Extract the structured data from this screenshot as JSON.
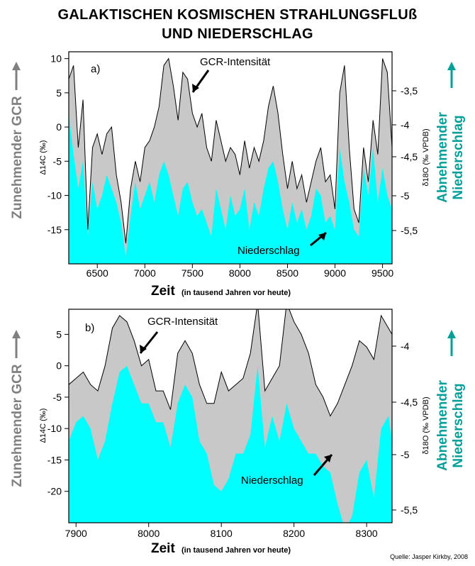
{
  "title_line1": "GALAKTISCHEN KOSMISCHEN STRAHLUNGSFLUß",
  "title_line2": "UND NIEDERSCHLAG",
  "source": "Quelle: Jasper Kirkby, 2008",
  "colors": {
    "gcr_fill": "#c8c8c8",
    "precip_fill": "#00ffff",
    "green_label": "#00a098",
    "gray_label": "#808080",
    "line": "#000000"
  },
  "chart_data": [
    {
      "type": "area",
      "panel_label": "a)",
      "xlabel": "Zeit",
      "xlabel_note": "(in tausend Jahren vor heute)",
      "xlim": [
        6200,
        9600
      ],
      "xticks": [
        6500,
        7000,
        7500,
        8000,
        8500,
        9000,
        9500
      ],
      "ylim_left": [
        -20,
        11
      ],
      "yticks_left": [
        -15,
        -10,
        -5,
        0,
        5,
        10
      ],
      "ylabel_left": "Δ14C (‰)",
      "side_label_left": "Zunehmender GCR",
      "yticks_right": [
        "-3,5",
        "-4",
        "-4,5",
        "-5",
        "-5,5"
      ],
      "ylabel_right": "δ18O (‰ VPDB)",
      "side_label_right_1": "Abnehmender",
      "side_label_right_2": "Niederschlag",
      "annotation_gcr": "GCR-Intensität",
      "annotation_precip": "Niederschlag",
      "series": [
        {
          "name": "GCR-Intensität",
          "x": [
            6200,
            6250,
            6300,
            6350,
            6400,
            6450,
            6500,
            6550,
            6600,
            6650,
            6700,
            6750,
            6800,
            6850,
            6900,
            6950,
            7000,
            7050,
            7100,
            7150,
            7200,
            7250,
            7300,
            7350,
            7400,
            7450,
            7500,
            7550,
            7600,
            7650,
            7700,
            7750,
            7800,
            7850,
            7900,
            7950,
            8000,
            8050,
            8100,
            8150,
            8200,
            8250,
            8300,
            8350,
            8400,
            8450,
            8500,
            8550,
            8600,
            8650,
            8700,
            8750,
            8800,
            8850,
            8900,
            8950,
            9000,
            9050,
            9100,
            9150,
            9200,
            9250,
            9300,
            9350,
            9400,
            9450,
            9500,
            9550,
            9600
          ],
          "values": [
            7,
            9,
            -3,
            4,
            -15,
            -3,
            -1,
            -4,
            -1,
            0,
            -7,
            -11,
            -17,
            -9,
            -5,
            -8,
            -3,
            -2,
            0,
            3,
            9,
            10,
            6,
            1,
            8,
            7,
            2,
            0,
            2,
            -3,
            -5,
            1,
            -2,
            -5,
            -3,
            -4,
            -7,
            -2,
            -6,
            -3,
            -5,
            -2,
            3,
            6,
            2,
            -4,
            -9,
            -5,
            -9,
            -7,
            -11,
            -8,
            -5,
            -3,
            -8,
            -7,
            -12,
            5,
            9,
            -3,
            -12,
            -14,
            -3,
            -8,
            1,
            -4,
            10,
            8,
            -3
          ]
        },
        {
          "name": "Niederschlag",
          "x": [
            6200,
            6250,
            6300,
            6350,
            6400,
            6450,
            6500,
            6550,
            6600,
            6650,
            6700,
            6750,
            6800,
            6850,
            6900,
            6950,
            7000,
            7050,
            7100,
            7150,
            7200,
            7250,
            7300,
            7350,
            7400,
            7450,
            7500,
            7550,
            7600,
            7650,
            7700,
            7750,
            7800,
            7850,
            7900,
            7950,
            8000,
            8050,
            8100,
            8150,
            8200,
            8250,
            8300,
            8350,
            8400,
            8450,
            8500,
            8550,
            8600,
            8650,
            8700,
            8750,
            8800,
            8850,
            8900,
            8950,
            9000,
            9050,
            9100,
            9150,
            9200,
            9250,
            9300,
            9350,
            9400,
            9450,
            9500,
            9550,
            9600
          ],
          "values": [
            2,
            -4,
            -9,
            -5,
            -16,
            -8,
            -12,
            -10,
            -7,
            -9,
            -11,
            -14,
            -19,
            -13,
            -8,
            -12,
            -10,
            -8,
            -11,
            -7,
            -5,
            -7,
            -10,
            -13,
            -9,
            -8,
            -11,
            -13,
            -12,
            -14,
            -16,
            -9,
            -12,
            -15,
            -10,
            -13,
            -12,
            -9,
            -15,
            -11,
            -13,
            -9,
            -6,
            -5,
            -8,
            -12,
            -15,
            -11,
            -14,
            -12,
            -15,
            -13,
            -9,
            -10,
            -14,
            -13,
            -15,
            -3,
            -8,
            -11,
            -15,
            -16,
            -6,
            -10,
            -3,
            -11,
            -6,
            -10,
            -12
          ]
        }
      ]
    },
    {
      "type": "area",
      "panel_label": "b)",
      "xlabel": "Zeit",
      "xlabel_note": "(in tausend Jahren vor heute)",
      "xlim": [
        7890,
        8335
      ],
      "xticks": [
        7900,
        8000,
        8100,
        8200,
        8300
      ],
      "ylim_left": [
        -25,
        9
      ],
      "yticks_left": [
        -20,
        -15,
        -10,
        -5,
        0,
        5
      ],
      "ylabel_left": "Δ14C (‰)",
      "side_label_left": "Zunehmender GCR",
      "yticks_right": [
        "-4",
        "-4,5",
        "-5",
        "-5,5"
      ],
      "ylabel_right": "δ18O (‰ VPDB)",
      "side_label_right_1": "Abnehmender",
      "side_label_right_2": "Niederschlag",
      "annotation_gcr": "GCR-Intensität",
      "annotation_precip": "Niederschlag",
      "series": [
        {
          "name": "GCR-Intensität",
          "x": [
            7890,
            7900,
            7910,
            7920,
            7930,
            7940,
            7950,
            7960,
            7970,
            7980,
            7990,
            8000,
            8010,
            8020,
            8030,
            8040,
            8050,
            8060,
            8070,
            8080,
            8090,
            8100,
            8110,
            8120,
            8130,
            8140,
            8150,
            8160,
            8170,
            8180,
            8190,
            8200,
            8210,
            8220,
            8230,
            8240,
            8250,
            8260,
            8270,
            8280,
            8290,
            8300,
            8310,
            8320,
            8330,
            8335
          ],
          "values": [
            -3,
            -2,
            -1,
            -3,
            -4,
            0,
            6,
            8,
            7,
            4,
            0,
            1,
            -4,
            -4,
            -7,
            2,
            4,
            2,
            -3,
            -6,
            -6,
            -1,
            -4,
            -3,
            -2,
            2,
            10,
            -4,
            -2,
            0,
            10,
            7,
            5,
            2,
            -3,
            -5,
            -8,
            -6,
            -3,
            0,
            4,
            3,
            1,
            8,
            6,
            5
          ]
        },
        {
          "name": "Niederschlag",
          "x": [
            7890,
            7900,
            7910,
            7920,
            7930,
            7940,
            7950,
            7960,
            7970,
            7980,
            7990,
            8000,
            8010,
            8020,
            8030,
            8040,
            8050,
            8060,
            8070,
            8080,
            8090,
            8100,
            8110,
            8120,
            8130,
            8140,
            8150,
            8160,
            8170,
            8180,
            8190,
            8200,
            8210,
            8220,
            8230,
            8240,
            8250,
            8260,
            8270,
            8280,
            8290,
            8300,
            8310,
            8320,
            8330,
            8335
          ],
          "values": [
            -12,
            -9,
            -8,
            -10,
            -15,
            -12,
            -6,
            -1,
            0,
            -3,
            -6,
            -6,
            -9,
            -9,
            -13,
            -6,
            -3,
            -5,
            -12,
            -14,
            -19,
            -20,
            -18,
            -14,
            -14,
            -11,
            0,
            -13,
            -8,
            -12,
            -6,
            -10,
            -12,
            -14,
            -14,
            -16,
            -17,
            -22,
            -26,
            -24,
            -17,
            -15,
            -21,
            -10,
            -8,
            -12
          ]
        }
      ]
    }
  ]
}
